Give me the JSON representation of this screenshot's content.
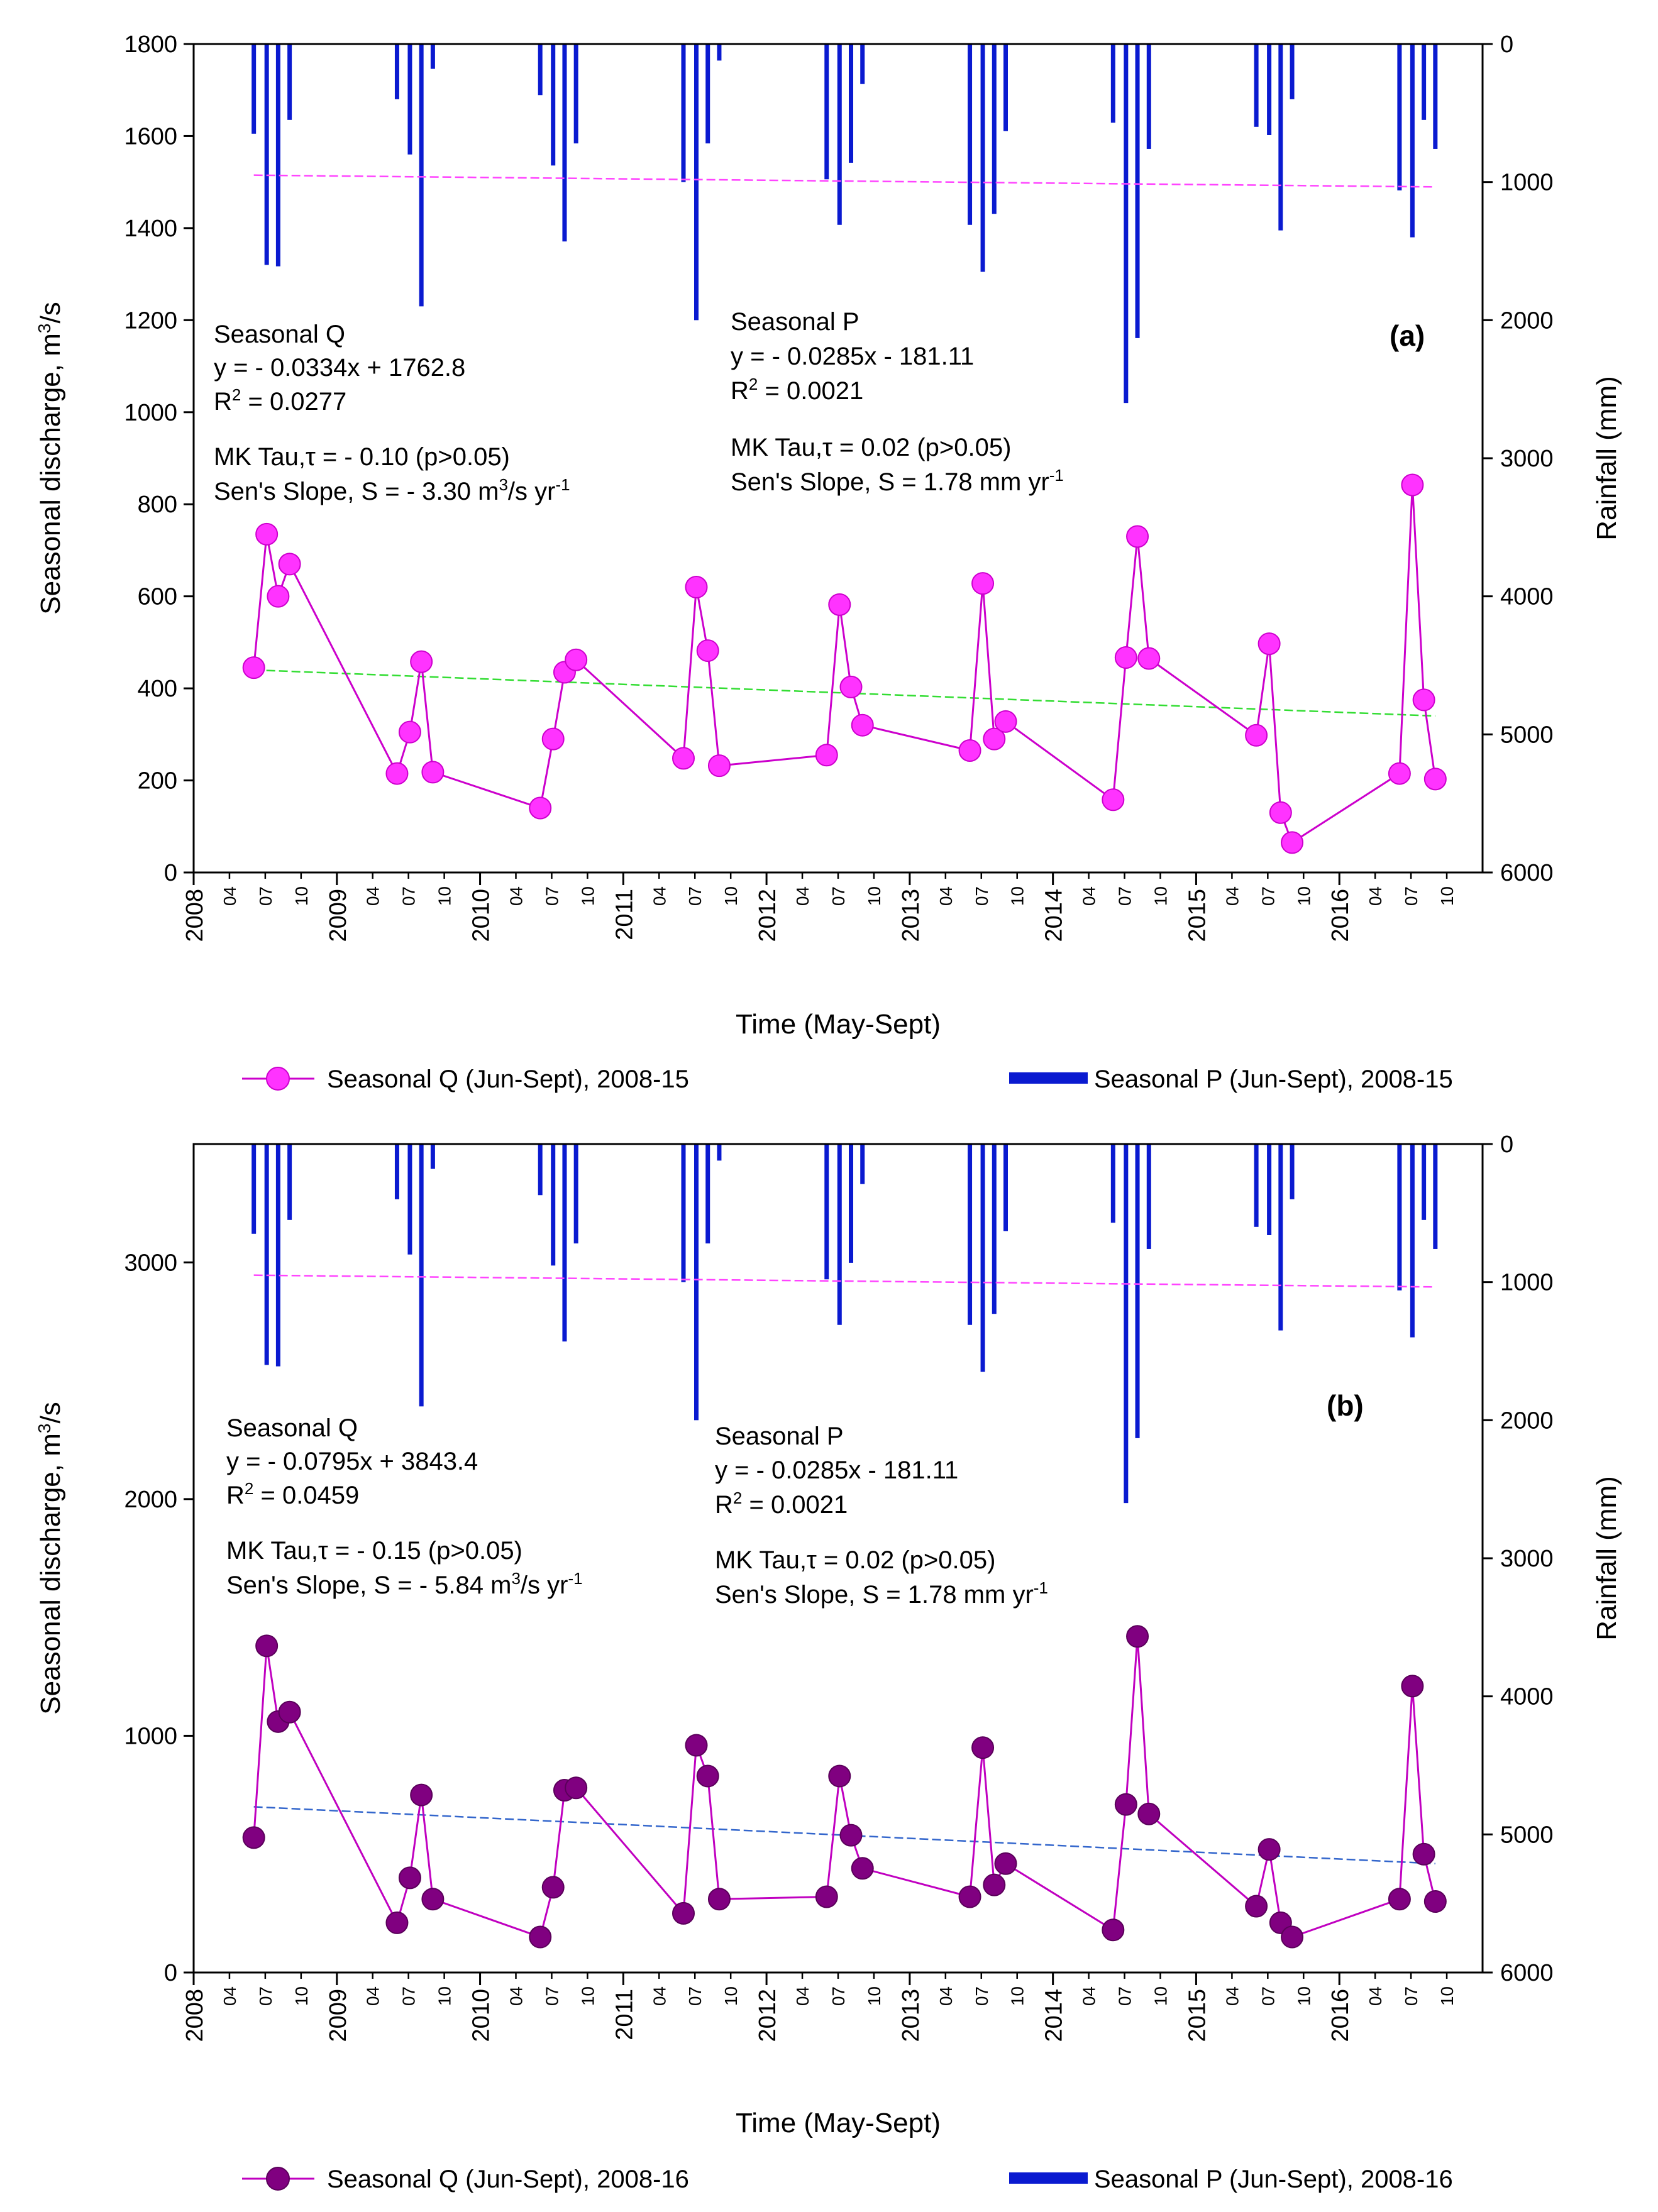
{
  "chart_data": [
    {
      "type": "line",
      "panel": "(a)",
      "xlabel": "Time (May-Sept)",
      "ylabel": "Seasonal discharge, m³/s",
      "y2label": "Rainfall (mm)",
      "ylim": [
        0,
        1800
      ],
      "yticks": [
        0,
        200,
        400,
        600,
        800,
        1000,
        1200,
        1400,
        1600,
        1800
      ],
      "y2lim": [
        0,
        6000
      ],
      "y2ticks": [
        0,
        1000,
        2000,
        3000,
        4000,
        5000,
        6000
      ],
      "q_annotation": [
        "Seasonal Q",
        "y = - 0.0334x + 1762.8",
        "R² = 0.0277",
        "MK Tau,τ = - 0.10 (p>0.05)",
        "Sen's Slope, S = - 3.30 m³/s yr⁻¹"
      ],
      "p_annotation": [
        "Seasonal P",
        "y = - 0.0285x - 181.11",
        "R² = 0.0021",
        "MK Tau,τ =  0.02 (p>0.05)",
        "Sen's Slope, S = 1.78 mm yr⁻¹"
      ],
      "legend": {
        "q": "Seasonal Q (Jun-Sept), 2008-15",
        "p": "Seasonal P (Jun-Sept), 2008-15"
      },
      "colors": {
        "q_line": "#cc00cc",
        "q_marker": "#ff33ff",
        "q_trend": "#33dd33",
        "p_bar": "#0a1ad0",
        "p_trend": "#ff44ff"
      },
      "series": [
        {
          "name": "Seasonal Q",
          "values": [
            445,
            735,
            600,
            670,
            215,
            305,
            458,
            218,
            140,
            290,
            435,
            462,
            248,
            620,
            482,
            232,
            255,
            582,
            403,
            320,
            265,
            628,
            290,
            328,
            158,
            467,
            730,
            465,
            298,
            497,
            130,
            65,
            215,
            842,
            375,
            203
          ]
        },
        {
          "name": "Seasonal P",
          "values": [
            650,
            1600,
            1610,
            550,
            400,
            800,
            1900,
            180,
            370,
            880,
            1430,
            720,
            1000,
            2000,
            720,
            120,
            980,
            1310,
            860,
            290,
            1310,
            1650,
            1230,
            630,
            570,
            2600,
            2130,
            760,
            600,
            660,
            1350,
            400,
            1060,
            1400,
            550,
            760
          ]
        }
      ],
      "q_trend_endpoints": [
        440,
        340
      ],
      "p_trend_endpoints": [
        950,
        1035
      ]
    },
    {
      "type": "line",
      "panel": "(b)",
      "xlabel": "Time (May-Sept)",
      "ylabel": "Seasonal discharge, m³/s",
      "y2label": "Rainfall (mm)",
      "ylim": [
        0,
        3500
      ],
      "yticks": [
        0,
        1000,
        2000,
        3000
      ],
      "y2lim": [
        0,
        6000
      ],
      "y2ticks": [
        0,
        1000,
        2000,
        3000,
        4000,
        5000,
        6000
      ],
      "q_annotation": [
        "Seasonal Q",
        "y = - 0.0795x + 3843.4",
        "R² = 0.0459",
        "MK Tau,τ = - 0.15 (p>0.05)",
        "Sen's Slope, S = - 5.84 m³/s yr⁻¹"
      ],
      "p_annotation": [
        "Seasonal P",
        "y = - 0.0285x - 181.11",
        "R² = 0.0021",
        "MK Tau,τ =  0.02 (p>0.05)",
        "Sen's Slope, S = 1.78 mm yr⁻¹"
      ],
      "legend": {
        "q": "Seasonal Q (Jun-Sept), 2008-16",
        "p": "Seasonal P (Jun-Sept), 2008-16"
      },
      "colors": {
        "q_line": "#c000c0",
        "q_marker": "#800080",
        "q_trend": "#3366cc",
        "p_bar": "#0a1ad0",
        "p_trend": "#ff44ff"
      },
      "series": [
        {
          "name": "Seasonal Q",
          "values": [
            570,
            1380,
            1060,
            1100,
            210,
            400,
            750,
            310,
            150,
            360,
            770,
            780,
            250,
            960,
            830,
            310,
            320,
            830,
            580,
            440,
            320,
            950,
            370,
            460,
            180,
            710,
            1420,
            670,
            280,
            520,
            210,
            150,
            310,
            1210,
            500,
            300
          ]
        },
        {
          "name": "Seasonal P",
          "values": [
            650,
            1600,
            1610,
            550,
            400,
            800,
            1900,
            180,
            370,
            880,
            1430,
            720,
            1000,
            2000,
            720,
            120,
            980,
            1310,
            860,
            290,
            1310,
            1650,
            1230,
            630,
            570,
            2600,
            2130,
            760,
            600,
            660,
            1350,
            400,
            1060,
            1400,
            550,
            760
          ]
        }
      ],
      "q_trend_endpoints": [
        700,
        460
      ],
      "p_trend_endpoints": [
        950,
        1035
      ]
    }
  ],
  "x_axis": {
    "years": [
      "2008",
      "2009",
      "2010",
      "2011",
      "2012",
      "2013",
      "2014",
      "2015",
      "2016"
    ],
    "months": [
      "04",
      "07",
      "10"
    ]
  }
}
